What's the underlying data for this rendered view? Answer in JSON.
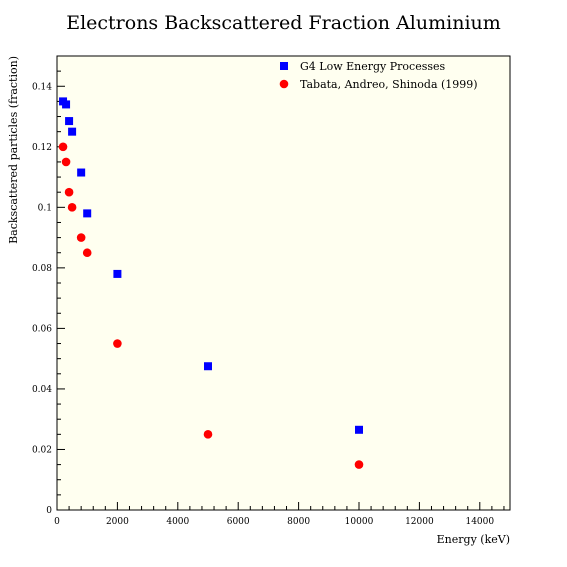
{
  "chart_data": {
    "type": "scatter",
    "title": "Electrons Backscattered Fraction Aluminium",
    "xlabel": "Energy (keV)",
    "ylabel": "Backscattered particles (fraction)",
    "xlim": [
      0,
      15000
    ],
    "ylim": [
      0,
      0.15
    ],
    "xticks": [
      0,
      2000,
      4000,
      6000,
      8000,
      10000,
      12000,
      14000
    ],
    "yticks": [
      0,
      0.02,
      0.04,
      0.06,
      0.08,
      0.1,
      0.12,
      0.14
    ],
    "xtick_labels": [
      "0",
      "2000",
      "4000",
      "6000",
      "8000",
      "10000",
      "12000",
      "14000"
    ],
    "ytick_labels": [
      "0",
      "0.02",
      "0.04",
      "0.06",
      "0.08",
      "0.1",
      "0.12",
      "0.14"
    ],
    "grid": false,
    "legend_position": "top-right",
    "background_color": "#fffff0",
    "series": [
      {
        "name": "G4 Low Energy Processes",
        "marker": "square",
        "color": "#0000ff",
        "x": [
          200,
          300,
          400,
          500,
          800,
          1000,
          2000,
          5000,
          10000
        ],
        "y": [
          0.135,
          0.134,
          0.1285,
          0.125,
          0.1115,
          0.098,
          0.078,
          0.0475,
          0.0265
        ]
      },
      {
        "name": "Tabata, Andreo, Shinoda (1999)",
        "marker": "circle",
        "color": "#ff0000",
        "x": [
          200,
          300,
          400,
          500,
          800,
          1000,
          2000,
          5000,
          10000
        ],
        "y": [
          0.12,
          0.115,
          0.105,
          0.1,
          0.09,
          0.085,
          0.055,
          0.025,
          0.015
        ]
      }
    ]
  }
}
